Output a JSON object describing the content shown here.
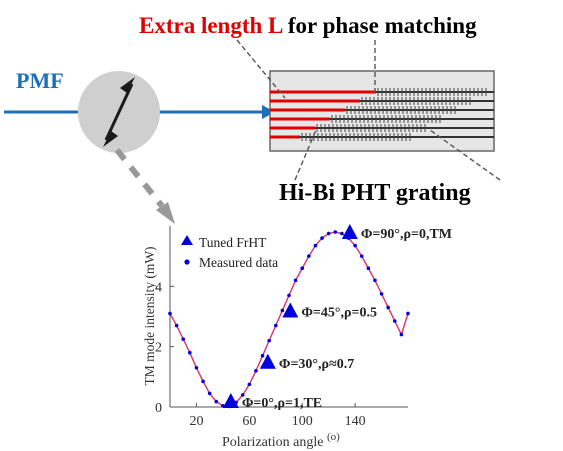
{
  "header": {
    "red_text": "Extra length L",
    "black_text": " for phase matching"
  },
  "left_label": "PMF",
  "grating_label": "Hi-Bi PHT grating",
  "colors": {
    "fiber_blue": "#1a6fb5",
    "highlight_red": "#e00000",
    "marker_blue": "#0000dd",
    "curve_red": "#e0306a",
    "grey": "#999999",
    "box_fill": "#e6e6e6",
    "circle_fill": "#cfcfcf"
  },
  "chart_data": {
    "type": "line",
    "ylabel": "TM mode intensity (mW)",
    "xlabel": "Polarization angle",
    "xlabel_unit": "(o)",
    "xticks": [
      20,
      60,
      100,
      140
    ],
    "yticks": [
      0,
      2,
      4
    ],
    "xlim": [
      0,
      180
    ],
    "ylim": [
      0,
      6
    ],
    "legend": {
      "position": "top-left",
      "entries": [
        "Tuned FrHT",
        "Measured data"
      ]
    },
    "measured_series": {
      "name": "Measured data",
      "x": [
        0,
        5,
        10,
        15,
        20,
        25,
        30,
        35,
        40,
        45,
        50,
        55,
        60,
        65,
        70,
        75,
        80,
        85,
        90,
        95,
        100,
        105,
        110,
        115,
        120,
        125,
        130,
        135,
        140,
        145,
        150,
        155,
        160,
        165,
        170,
        175,
        180
      ],
      "y": [
        3.1,
        2.7,
        2.25,
        1.8,
        1.3,
        0.85,
        0.45,
        0.18,
        0.04,
        0.02,
        0.15,
        0.4,
        0.75,
        1.2,
        1.7,
        2.2,
        2.7,
        3.2,
        3.7,
        4.2,
        4.6,
        5.0,
        5.35,
        5.6,
        5.75,
        5.8,
        5.75,
        5.6,
        5.35,
        5.0,
        4.6,
        4.2,
        3.75,
        3.3,
        2.85,
        2.4,
        3.1
      ]
    },
    "tuned_points": [
      {
        "x": 46,
        "y": 0.2,
        "label": "Φ=0°,ρ=1,TE"
      },
      {
        "x": 74,
        "y": 1.5,
        "label": "Φ=30°,ρ≈0.7"
      },
      {
        "x": 91,
        "y": 3.2,
        "label": "Φ=45°,ρ=0.5"
      },
      {
        "x": 136,
        "y": 5.8,
        "label": "Φ=90°,ρ=0,TM"
      }
    ]
  }
}
